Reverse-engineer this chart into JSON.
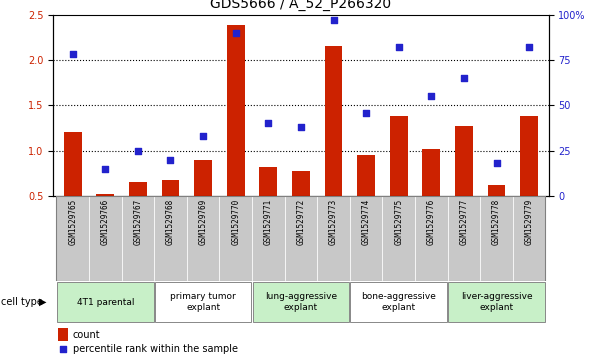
{
  "title": "GDS5666 / A_52_P266320",
  "samples": [
    "GSM1529765",
    "GSM1529766",
    "GSM1529767",
    "GSM1529768",
    "GSM1529769",
    "GSM1529770",
    "GSM1529771",
    "GSM1529772",
    "GSM1529773",
    "GSM1529774",
    "GSM1529775",
    "GSM1529776",
    "GSM1529777",
    "GSM1529778",
    "GSM1529779"
  ],
  "bar_values": [
    1.2,
    0.52,
    0.65,
    0.68,
    0.9,
    2.38,
    0.82,
    0.78,
    2.15,
    0.95,
    1.38,
    1.02,
    1.27,
    0.62,
    1.38
  ],
  "dot_values_pct": [
    78,
    15,
    25,
    20,
    33,
    90,
    40,
    38,
    97,
    46,
    82,
    55,
    65,
    18,
    82
  ],
  "ylim_left": [
    0.5,
    2.5
  ],
  "ylim_right": [
    0,
    100
  ],
  "yticks_left": [
    0.5,
    1.0,
    1.5,
    2.0,
    2.5
  ],
  "yticks_right": [
    0,
    25,
    50,
    75,
    100
  ],
  "bar_color": "#cc2200",
  "dot_color": "#2222cc",
  "groups": [
    {
      "label": "4T1 parental",
      "start": 0,
      "end": 2,
      "color": "#c8f0c8"
    },
    {
      "label": "primary tumor\nexplant",
      "start": 3,
      "end": 5,
      "color": "#ffffff"
    },
    {
      "label": "lung-aggressive\nexplant",
      "start": 6,
      "end": 8,
      "color": "#c8f0c8"
    },
    {
      "label": "bone-aggressive\nexplant",
      "start": 9,
      "end": 11,
      "color": "#ffffff"
    },
    {
      "label": "liver-aggressive\nexplant",
      "start": 12,
      "end": 14,
      "color": "#c8f0c8"
    }
  ],
  "cell_type_label": "cell type",
  "legend_bar_label": "count",
  "legend_dot_label": "percentile rank within the sample",
  "background_color": "#ffffff",
  "title_fontsize": 10,
  "tick_fontsize": 7,
  "dotted_lines": [
    1.0,
    1.5,
    2.0
  ],
  "sample_bg_color": "#c8c8c8",
  "fig_width": 5.9,
  "fig_height": 3.63
}
